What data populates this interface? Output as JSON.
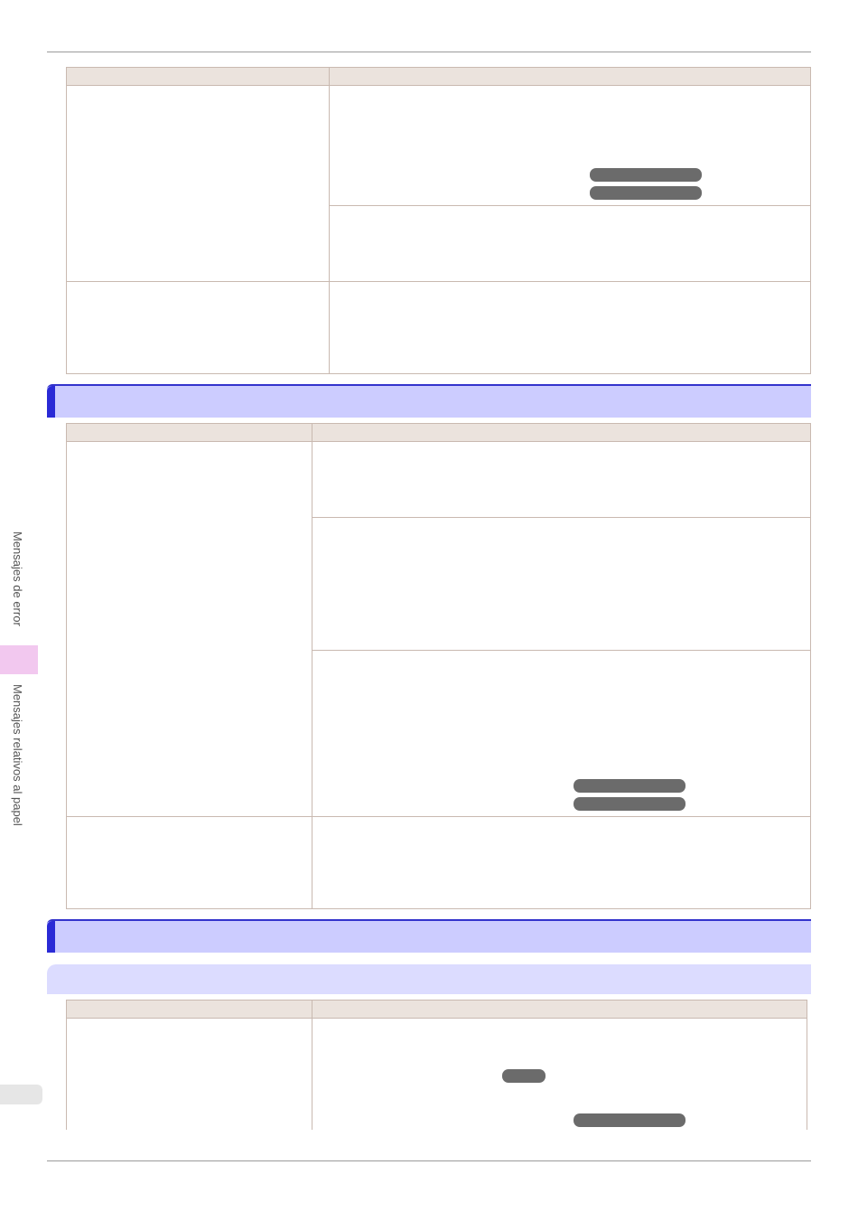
{
  "side_tabs": [
    "Mensajes de error",
    "Mensajes relativos al papel"
  ]
}
